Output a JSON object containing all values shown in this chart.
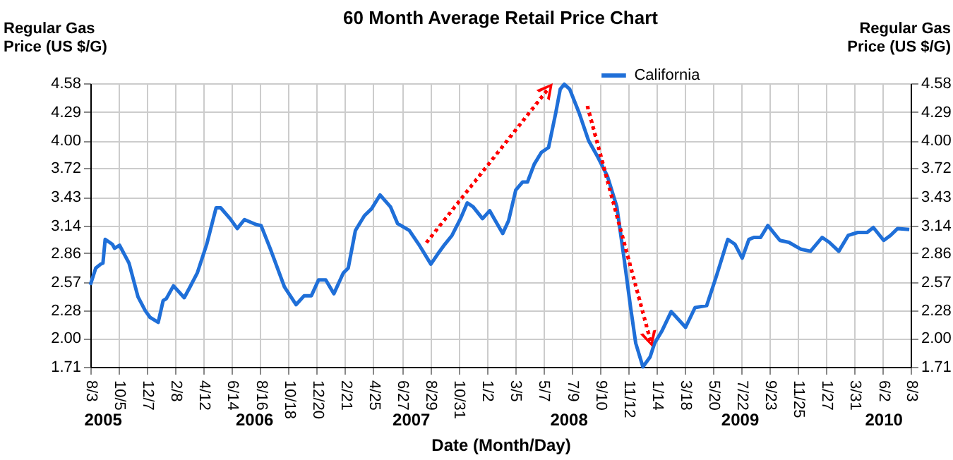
{
  "chart_data": {
    "type": "line",
    "title": "60 Month Average Retail Price Chart",
    "xlabel": "Date (Month/Day)",
    "ylabel": "Regular Gas Price (US $/G)",
    "y2label": "Regular Gas Price (US $/G)",
    "x": [
      "2005-08-03",
      "2005-08-15",
      "2005-08-26",
      "2005-08-31",
      "2005-09-05",
      "2005-09-21",
      "2005-09-26",
      "2005-10-07",
      "2005-10-28",
      "2005-11-17",
      "2005-12-03",
      "2005-12-14",
      "2006-01-01",
      "2006-01-12",
      "2006-01-19",
      "2006-02-04",
      "2006-02-28",
      "2006-03-13",
      "2006-03-29",
      "2006-04-19",
      "2006-05-10",
      "2006-05-20",
      "2006-06-10",
      "2006-06-26",
      "2006-07-12",
      "2006-08-07",
      "2006-08-18",
      "2006-09-08",
      "2006-10-09",
      "2006-11-04",
      "2006-11-22",
      "2006-12-08",
      "2006-12-24",
      "2007-01-09",
      "2007-01-27",
      "2007-02-17",
      "2007-02-28",
      "2007-03-16",
      "2007-04-05",
      "2007-04-21",
      "2007-05-10",
      "2007-06-02",
      "2007-06-18",
      "2007-07-14",
      "2007-08-04",
      "2007-08-31",
      "2007-09-15",
      "2007-10-01",
      "2007-10-17",
      "2007-11-05",
      "2007-11-20",
      "2007-12-03",
      "2007-12-24",
      "2008-01-09",
      "2008-01-19",
      "2008-02-07",
      "2008-02-20",
      "2008-03-07",
      "2008-03-22",
      "2008-04-02",
      "2008-04-17",
      "2008-05-03",
      "2008-05-19",
      "2008-06-04",
      "2008-06-14",
      "2008-06-23",
      "2008-07-05",
      "2008-07-26",
      "2008-08-16",
      "2008-09-06",
      "2008-09-27",
      "2008-10-18",
      "2008-11-03",
      "2008-11-17",
      "2008-11-29",
      "2008-12-15",
      "2008-12-31",
      "2009-01-10",
      "2009-01-26",
      "2009-02-16",
      "2009-03-04",
      "2009-03-20",
      "2009-04-10",
      "2009-05-06",
      "2009-05-27",
      "2009-06-22",
      "2009-07-08",
      "2009-07-24",
      "2009-08-08",
      "2009-08-19",
      "2009-09-03",
      "2009-09-19",
      "2009-10-16",
      "2009-11-05",
      "2009-12-02",
      "2009-12-23",
      "2010-01-18",
      "2010-02-03",
      "2010-02-24",
      "2010-03-17",
      "2010-04-07",
      "2010-04-28",
      "2010-05-12",
      "2010-06-04",
      "2010-06-19",
      "2010-07-05",
      "2010-07-31"
    ],
    "series": [
      {
        "name": "California",
        "color": "#1f6fd8",
        "values": [
          2.54,
          2.71,
          2.75,
          2.76,
          3.0,
          2.95,
          2.91,
          2.94,
          2.76,
          2.42,
          2.28,
          2.21,
          2.16,
          2.38,
          2.4,
          2.53,
          2.41,
          2.52,
          2.66,
          2.95,
          3.32,
          3.32,
          3.21,
          3.11,
          3.2,
          3.15,
          3.14,
          2.9,
          2.52,
          2.34,
          2.43,
          2.43,
          2.59,
          2.59,
          2.45,
          2.66,
          2.71,
          3.09,
          3.24,
          3.31,
          3.45,
          3.33,
          3.16,
          3.09,
          2.95,
          2.75,
          2.85,
          2.95,
          3.04,
          3.21,
          3.37,
          3.33,
          3.21,
          3.29,
          3.21,
          3.06,
          3.19,
          3.5,
          3.58,
          3.58,
          3.76,
          3.88,
          3.93,
          4.28,
          4.52,
          4.57,
          4.52,
          4.28,
          4.0,
          3.83,
          3.64,
          3.33,
          2.81,
          2.33,
          1.95,
          1.71,
          1.81,
          1.95,
          2.07,
          2.27,
          2.19,
          2.11,
          2.31,
          2.33,
          2.62,
          3.0,
          2.95,
          2.81,
          3.0,
          3.02,
          3.02,
          3.14,
          2.99,
          2.97,
          2.9,
          2.88,
          3.02,
          2.97,
          2.88,
          3.04,
          3.07,
          3.07,
          3.12,
          2.99,
          3.04,
          3.11,
          3.1
        ]
      }
    ],
    "xlim": [
      "2005-08-03",
      "2010-08-03"
    ],
    "xticks": [
      {
        "value": "2005-08-03",
        "label": "8/3"
      },
      {
        "value": "2005-10-05",
        "label": "10/5"
      },
      {
        "value": "2005-12-07",
        "label": "12/7"
      },
      {
        "value": "2006-02-08",
        "label": "2/8"
      },
      {
        "value": "2006-04-12",
        "label": "4/12"
      },
      {
        "value": "2006-06-14",
        "label": "6/14"
      },
      {
        "value": "2006-08-16",
        "label": "8/16"
      },
      {
        "value": "2006-10-18",
        "label": "10/18"
      },
      {
        "value": "2006-12-20",
        "label": "12/20"
      },
      {
        "value": "2007-02-21",
        "label": "2/21"
      },
      {
        "value": "2007-04-25",
        "label": "4/25"
      },
      {
        "value": "2007-06-27",
        "label": "6/27"
      },
      {
        "value": "2007-08-29",
        "label": "8/29"
      },
      {
        "value": "2007-10-31",
        "label": "10/31"
      },
      {
        "value": "2008-01-02",
        "label": "1/2"
      },
      {
        "value": "2008-03-05",
        "label": "3/5"
      },
      {
        "value": "2008-05-07",
        "label": "5/7"
      },
      {
        "value": "2008-07-09",
        "label": "7/9"
      },
      {
        "value": "2008-09-10",
        "label": "9/10"
      },
      {
        "value": "2008-11-12",
        "label": "11/12"
      },
      {
        "value": "2009-01-14",
        "label": "1/14"
      },
      {
        "value": "2009-03-18",
        "label": "3/18"
      },
      {
        "value": "2009-05-20",
        "label": "5/20"
      },
      {
        "value": "2009-07-22",
        "label": "7/22"
      },
      {
        "value": "2009-09-23",
        "label": "9/23"
      },
      {
        "value": "2009-11-25",
        "label": "11/25"
      },
      {
        "value": "2010-01-27",
        "label": "1/27"
      },
      {
        "value": "2010-03-31",
        "label": "3/31"
      },
      {
        "value": "2010-06-02",
        "label": "6/2"
      },
      {
        "value": "2010-08-03",
        "label": "8/3"
      }
    ],
    "x2lim": [
      "2005-08-03",
      "2010-08-03"
    ],
    "x2ticks": [
      {
        "value": "2005-08-30",
        "label": "2005"
      },
      {
        "value": "2006-08-02",
        "label": "2006"
      },
      {
        "value": "2007-07-17",
        "label": "2007"
      },
      {
        "value": "2008-07-02",
        "label": "2008"
      },
      {
        "value": "2009-07-18",
        "label": "2009"
      },
      {
        "value": "2010-06-03",
        "label": "2010"
      }
    ],
    "ylim": [
      1.71,
      4.58
    ],
    "yticks": [
      1.71,
      {
        "value": 2,
        "label": "2.00"
      },
      2.28,
      2.57,
      2.86,
      3.14,
      3.43,
      3.72,
      {
        "value": 4,
        "label": "4.00"
      },
      4.29,
      4.58
    ],
    "y2lim": [
      1.71,
      4.58
    ],
    "y2ticks": [
      1.71,
      {
        "value": 2,
        "label": "2.00"
      },
      2.28,
      2.57,
      2.86,
      3.14,
      3.43,
      3.72,
      {
        "value": 4,
        "label": "4.00"
      },
      4.29,
      4.58
    ],
    "grid": true,
    "legend": "top right",
    "line_style": "solid",
    "marker": "none"
  }
}
